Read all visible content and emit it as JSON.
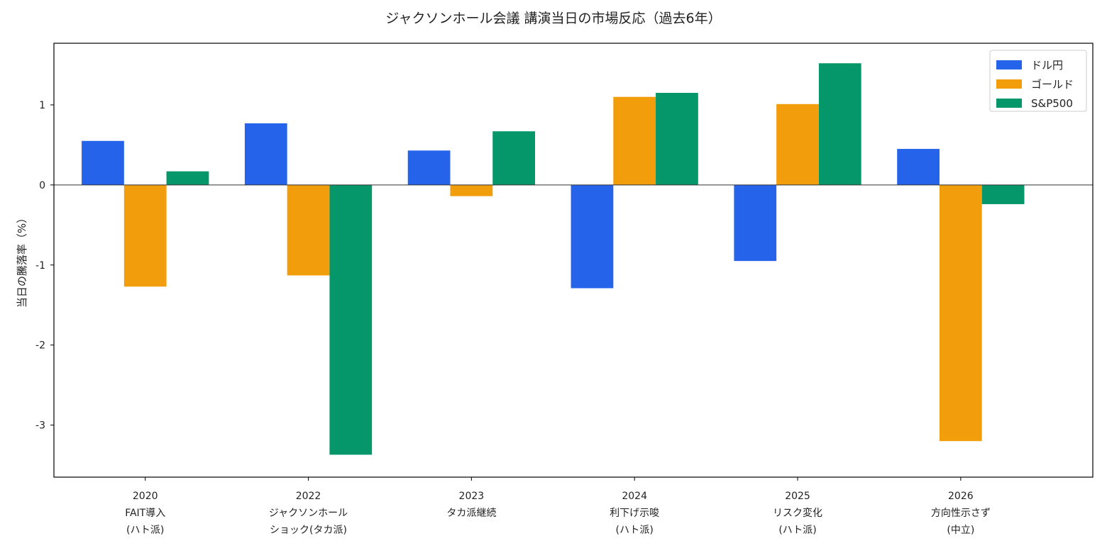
{
  "chart_data": {
    "type": "bar",
    "title": "ジャクソンホール会議 講演当日の市場反応（過去6年）",
    "xlabel": "",
    "ylabel": "当日の騰落率（%）",
    "ylim": [
      -3.65,
      1.77
    ],
    "yticks": [
      -3,
      -2,
      -1,
      0,
      1
    ],
    "grid": false,
    "legend_position": "top-right",
    "categories": [
      [
        "2020",
        "FAIT導入",
        "(ハト派)"
      ],
      [
        "2022",
        "ジャクソンホール",
        "ショック(タカ派)"
      ],
      [
        "2023",
        "タカ派継続"
      ],
      [
        "2024",
        "利下げ示唆",
        "(ハト派)"
      ],
      [
        "2025",
        "リスク変化",
        "(ハト派)"
      ],
      [
        "2026",
        "方向性示さず",
        "(中立)"
      ]
    ],
    "series": [
      {
        "name": "ドル円",
        "color": "#2563eb",
        "values": [
          0.55,
          0.77,
          0.43,
          -1.29,
          -0.95,
          0.45
        ]
      },
      {
        "name": "ゴールド",
        "color": "#f29e0c",
        "values": [
          -1.27,
          -1.13,
          -0.14,
          1.1,
          1.01,
          -3.2
        ]
      },
      {
        "name": "S&P500",
        "color": "#059669",
        "values": [
          0.17,
          -3.37,
          0.67,
          1.15,
          1.52,
          -0.24
        ]
      }
    ]
  }
}
